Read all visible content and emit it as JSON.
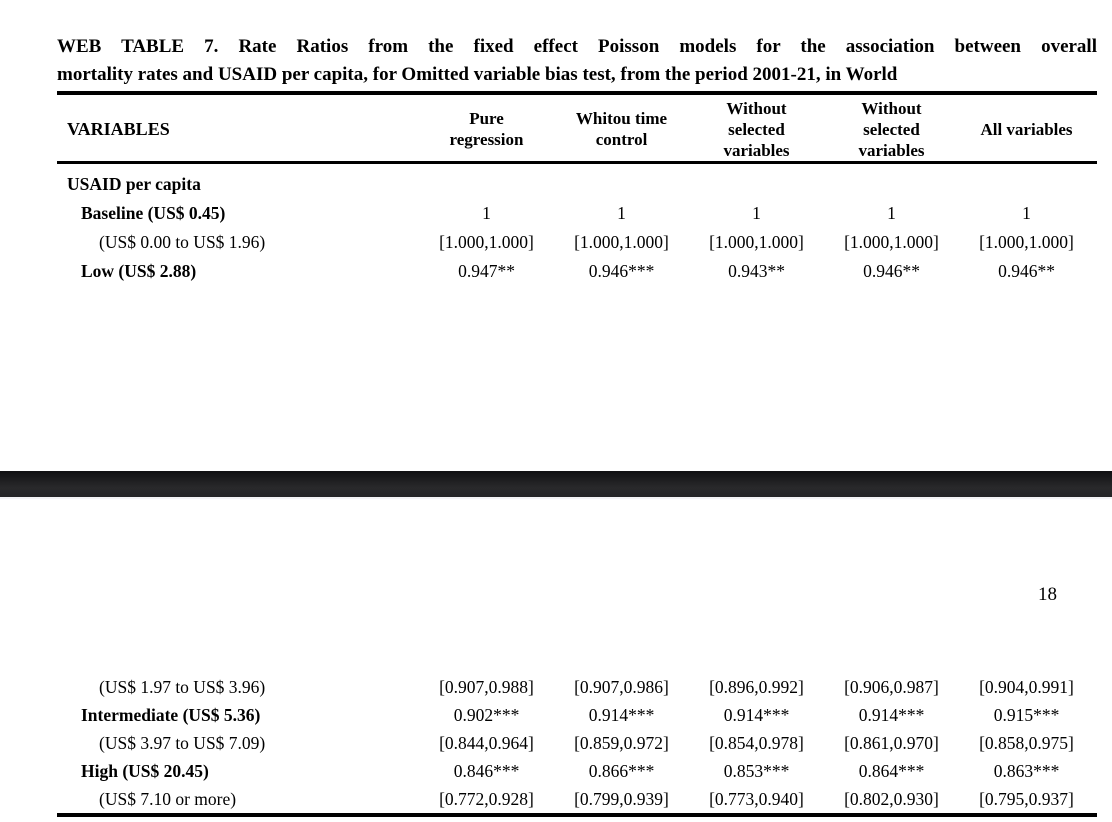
{
  "document": {
    "title_line1": "WEB TABLE 7. Rate Ratios from the fixed effect Poisson models for the association between overall",
    "title_line2": "mortality rates and USAID per capita, for Omitted variable bias test, from the period 2001-21, in World",
    "page_number": "18"
  },
  "table": {
    "columns": [
      "VARIABLES",
      "Pure regression",
      "Whitou time control",
      "Without selected variables",
      "Without selected variables",
      "All variables"
    ],
    "top_rows": [
      {
        "label": "USAID per capita",
        "values": [
          "",
          "",
          "",
          "",
          ""
        ]
      },
      {
        "label": "Baseline (US$ 0.45)",
        "values": [
          "1",
          "1",
          "1",
          "1",
          "1"
        ]
      },
      {
        "label": "(US$ 0.00 to US$ 1.96)",
        "values": [
          "[1.000,1.000]",
          "[1.000,1.000]",
          "[1.000,1.000]",
          "[1.000,1.000]",
          "[1.000,1.000]"
        ]
      },
      {
        "label": "Low (US$ 2.88)",
        "values": [
          "0.947**",
          "0.946***",
          "0.943**",
          "0.946**",
          "0.946**"
        ]
      }
    ],
    "bottom_rows": [
      {
        "label": "(US$ 1.97 to US$ 3.96)",
        "values": [
          "[0.907,0.988]",
          "[0.907,0.986]",
          "[0.896,0.992]",
          "[0.906,0.987]",
          "[0.904,0.991]"
        ]
      },
      {
        "label": "Intermediate (US$ 5.36)",
        "values": [
          "0.902***",
          "0.914***",
          "0.914***",
          "0.914***",
          "0.915***"
        ]
      },
      {
        "label": "(US$ 3.97 to US$ 7.09)",
        "values": [
          "[0.844,0.964]",
          "[0.859,0.972]",
          "[0.854,0.978]",
          "[0.861,0.970]",
          "[0.858,0.975]"
        ]
      },
      {
        "label": "High (US$ 20.45)",
        "values": [
          "0.846***",
          "0.866***",
          "0.853***",
          "0.864***",
          "0.863***"
        ]
      },
      {
        "label": "(US$ 7.10 or more)",
        "values": [
          "[0.772,0.928]",
          "[0.799,0.939]",
          "[0.773,0.940]",
          "[0.802,0.930]",
          "[0.795,0.937]"
        ]
      }
    ]
  }
}
